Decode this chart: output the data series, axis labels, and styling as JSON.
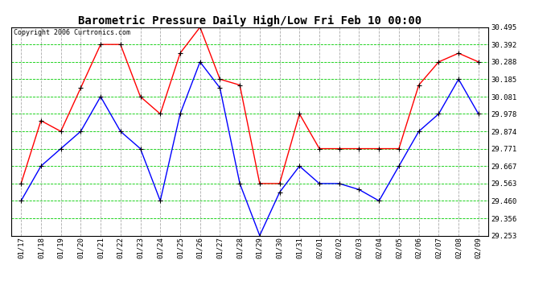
{
  "title": "Barometric Pressure Daily High/Low Fri Feb 10 00:00",
  "copyright": "Copyright 2006 Curtronics.com",
  "x_labels": [
    "01/17",
    "01/18",
    "01/19",
    "01/20",
    "01/21",
    "01/22",
    "01/23",
    "01/24",
    "01/25",
    "01/26",
    "01/27",
    "01/28",
    "01/29",
    "01/30",
    "01/31",
    "02/01",
    "02/02",
    "02/03",
    "02/04",
    "02/05",
    "02/06",
    "02/07",
    "02/08",
    "02/09"
  ],
  "high_values": [
    29.563,
    29.938,
    29.874,
    30.133,
    30.392,
    30.392,
    30.081,
    29.978,
    30.34,
    30.495,
    30.185,
    30.15,
    29.563,
    29.563,
    29.978,
    29.771,
    29.771,
    29.771,
    29.771,
    29.771,
    30.15,
    30.288,
    30.34,
    30.288
  ],
  "low_values": [
    29.46,
    29.667,
    29.771,
    29.874,
    30.081,
    29.874,
    29.771,
    29.46,
    29.978,
    30.288,
    30.133,
    29.563,
    29.253,
    29.511,
    29.667,
    29.563,
    29.563,
    29.527,
    29.46,
    29.667,
    29.874,
    29.978,
    30.185,
    29.978
  ],
  "high_color": "#ff0000",
  "low_color": "#0000ff",
  "grid_h_color": "#00cc00",
  "grid_v_color": "#aaaaaa",
  "background_color": "#ffffff",
  "ylim": [
    29.253,
    30.495
  ],
  "yticks": [
    29.253,
    29.356,
    29.46,
    29.563,
    29.667,
    29.771,
    29.874,
    29.978,
    30.081,
    30.185,
    30.288,
    30.392,
    30.495
  ],
  "title_fontsize": 10,
  "tick_fontsize": 6.5
}
